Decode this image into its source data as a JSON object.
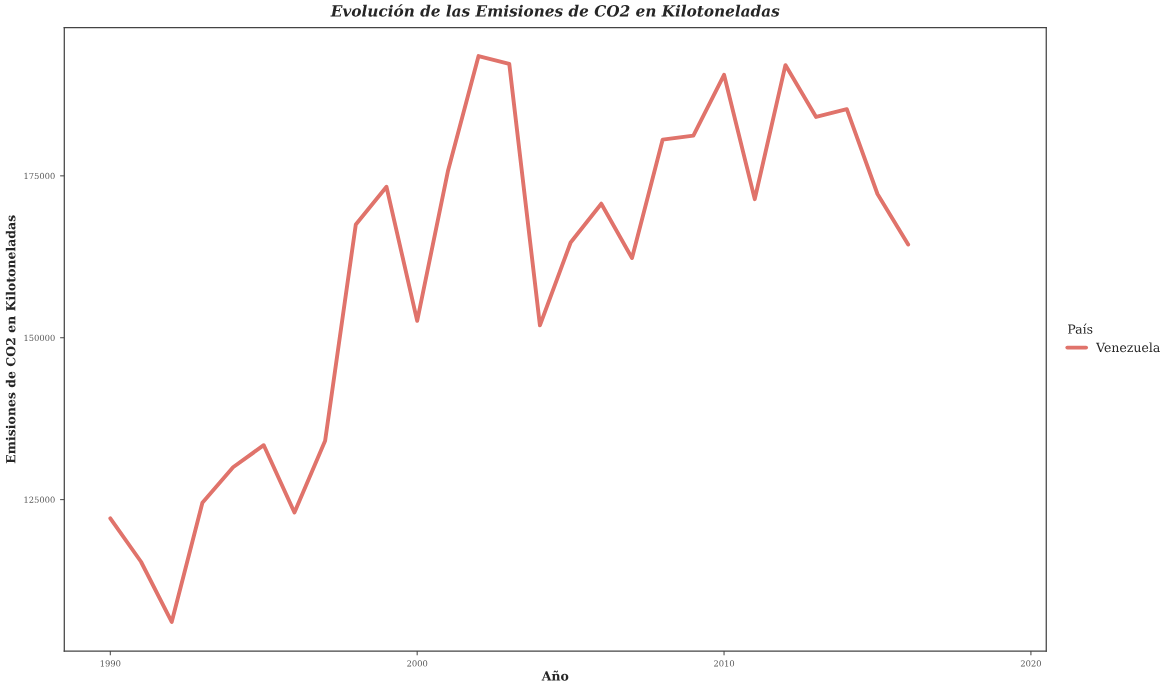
{
  "chart_data": {
    "type": "line",
    "title": "Evolución de las Emisiones de CO2 en Kilotoneladas",
    "xlabel": "Año",
    "ylabel": "Emisiones de CO2 en Kilotoneladas",
    "legend_title": "País",
    "x": [
      1990,
      1991,
      1992,
      1993,
      1994,
      1995,
      1996,
      1997,
      1998,
      1999,
      2000,
      2001,
      2002,
      2003,
      2004,
      2005,
      2006,
      2007,
      2008,
      2009,
      2010,
      2011,
      2012,
      2013,
      2014,
      2015,
      2016
    ],
    "series": [
      {
        "name": "Venezuela",
        "color": "#e0736b",
        "values": [
          122100,
          115400,
          106100,
          124500,
          130000,
          133400,
          123000,
          134100,
          167500,
          173300,
          152600,
          175700,
          193500,
          192300,
          151900,
          164700,
          170700,
          162300,
          180600,
          181200,
          190600,
          171400,
          192100,
          184100,
          185300,
          172200,
          164400
        ]
      }
    ],
    "xlim": [
      1988.5,
      2020.5
    ],
    "xticks": [
      1990,
      2000,
      2010,
      2020
    ],
    "ylim": [
      101600,
      197900
    ],
    "yticks": [
      125000,
      150000,
      175000
    ],
    "grid": false,
    "legend": "right",
    "line_style": "solid",
    "marker": "none"
  }
}
